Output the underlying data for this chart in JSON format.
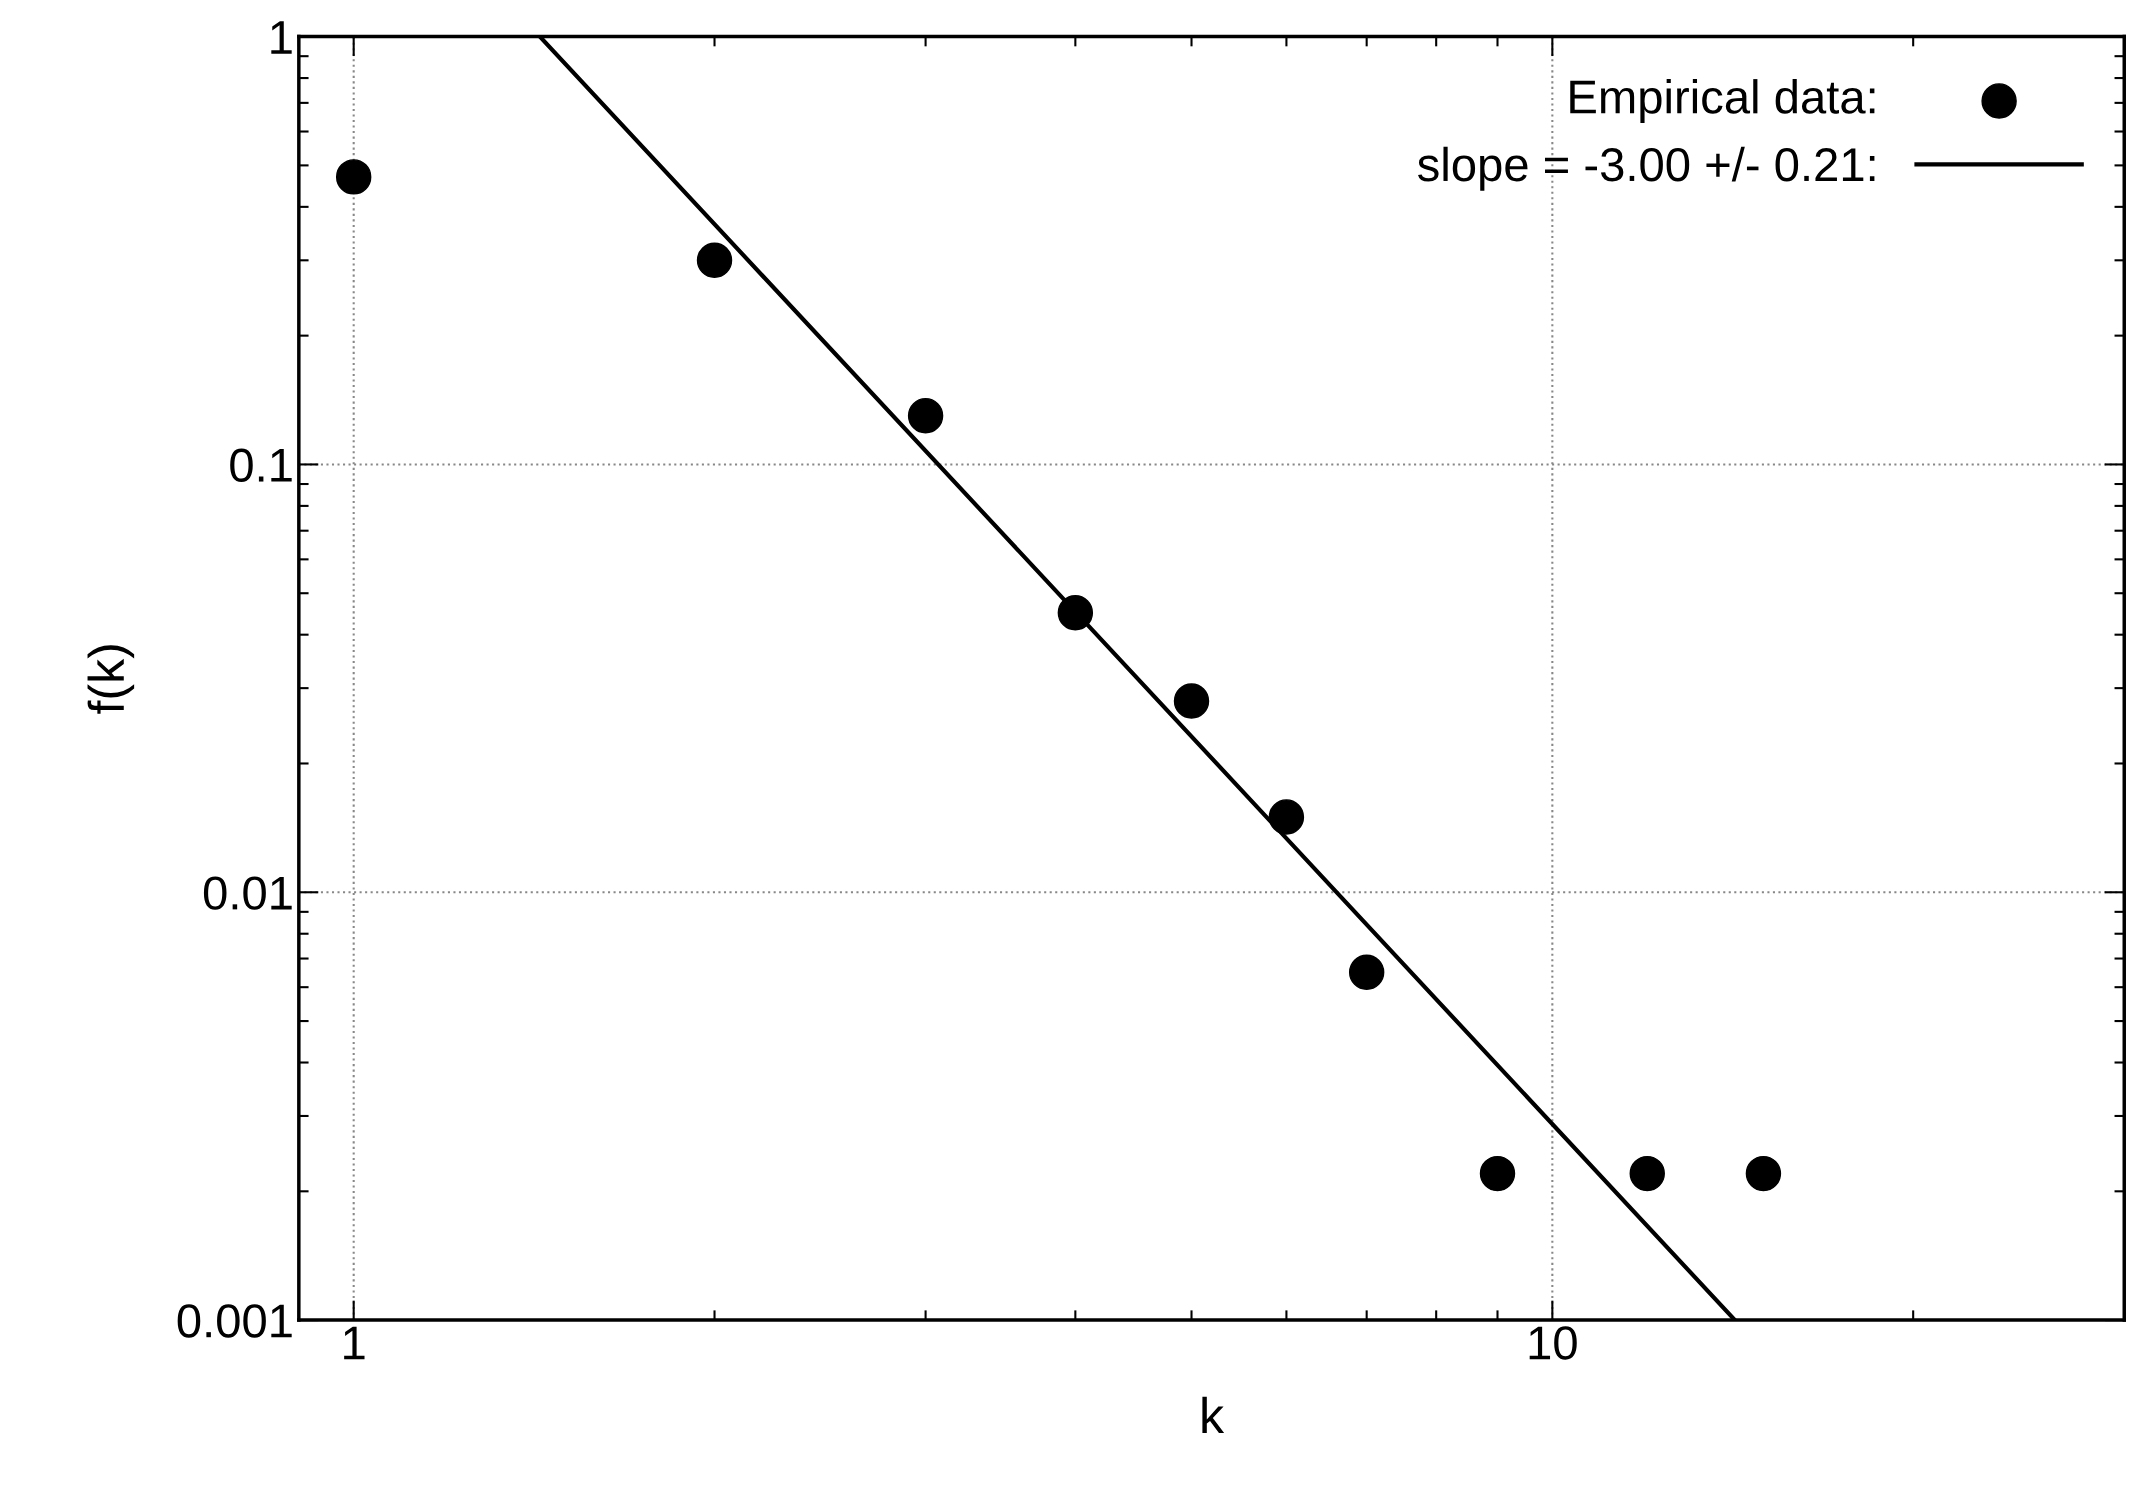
{
  "chart_data": {
    "type": "scatter",
    "xlabel": "k",
    "ylabel": "f(k)",
    "log": "xy",
    "grid": true,
    "legend": "top right",
    "xlim": [
      0.9,
      30
    ],
    "ylim": [
      0.001,
      1
    ],
    "xticks": [
      1,
      10
    ],
    "yticks": [
      0.001,
      0.01,
      0.1,
      1
    ],
    "series": [
      {
        "name": "Empirical data:",
        "marker": "circle",
        "color": "#000000",
        "x": [
          1,
          2,
          3,
          4,
          5,
          6,
          7,
          9,
          12,
          15
        ],
        "values": [
          0.47,
          0.3,
          0.13,
          0.045,
          0.028,
          0.015,
          0.0065,
          0.0022,
          0.0022,
          0.0022
        ]
      },
      {
        "name": "slope = -3.00 +/- 0.21:",
        "type": "line",
        "marker": "none",
        "line_style": "solid",
        "color": "#000000",
        "x": [
          1.43,
          14.2
        ],
        "values": [
          1,
          0.001
        ]
      }
    ]
  }
}
